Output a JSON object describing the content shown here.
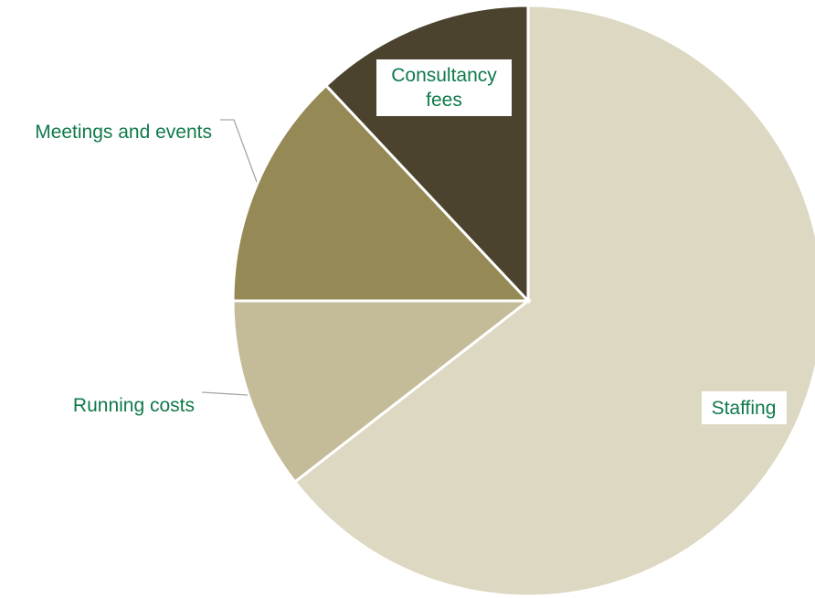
{
  "chart_data": {
    "type": "pie",
    "title": "",
    "colors": {
      "Staffing": "#ddd8c2",
      "Running costs": "#c4bb98",
      "Meetings and events": "#958955",
      "Consultancy fees": "#4b432d",
      "label_text": "#0f7a4a",
      "leader_line": "#a6a6a6"
    },
    "slices": [
      {
        "label": "Staffing",
        "value": 64.5,
        "color": "#ddd8c2"
      },
      {
        "label": "Running costs",
        "value": 10.5,
        "color": "#c4bb98"
      },
      {
        "label": "Meetings and events",
        "value": 13.0,
        "color": "#958955"
      },
      {
        "label": "Consultancy fees",
        "value": 12.0,
        "color": "#4b432d"
      }
    ],
    "labels": {
      "staffing": "Staffing",
      "running_costs": "Running costs",
      "meetings_and_events": "Meetings and events",
      "consultancy_line1": "Consultancy",
      "consultancy_line2": "fees"
    },
    "legend": "none",
    "start_angle": "top (12 o'clock), clockwise"
  }
}
